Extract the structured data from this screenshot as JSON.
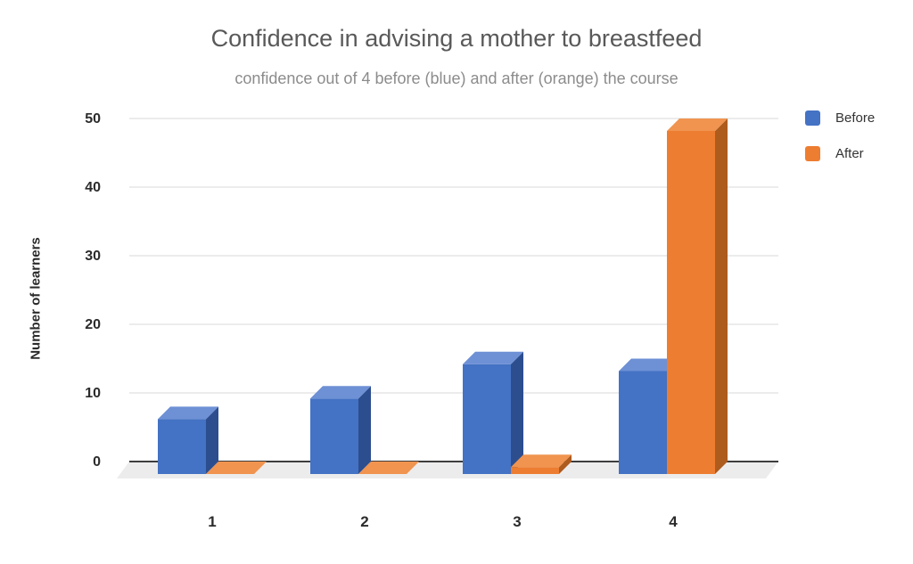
{
  "header": {
    "title": "Confidence in advising a mother to breastfeed",
    "subtitle": "confidence out of 4 before (blue) and after (orange) the course"
  },
  "legend": {
    "items": [
      {
        "label": "Before",
        "color": "#4472C4"
      },
      {
        "label": "After",
        "color": "#ED7D31"
      }
    ]
  },
  "chart_data": {
    "type": "bar",
    "style": "3d-clustered-column",
    "title": "Confidence in advising a mother to breastfeed",
    "subtitle": "confidence out of 4 before (blue) and after (orange) the course",
    "xlabel": "",
    "ylabel": "Number of learners",
    "categories": [
      "1",
      "2",
      "3",
      "4"
    ],
    "series": [
      {
        "name": "Before",
        "values": [
          8,
          11,
          16,
          15
        ],
        "color_front": "#4472C4",
        "color_top": "#6E90D5",
        "color_side": "#2C4E8F"
      },
      {
        "name": "After",
        "values": [
          0,
          0,
          1,
          50
        ],
        "color_front": "#ED7D31",
        "color_top": "#F0944F",
        "color_side": "#AE5B1E"
      }
    ],
    "yticks": [
      0,
      10,
      20,
      30,
      40,
      50
    ],
    "ylim": [
      0,
      50
    ],
    "grid": true,
    "gridline_color": "#d8d8d8",
    "axis_line_color": "#3d3d3d",
    "floor_color": "#ececec",
    "legend_position": "top-right"
  }
}
